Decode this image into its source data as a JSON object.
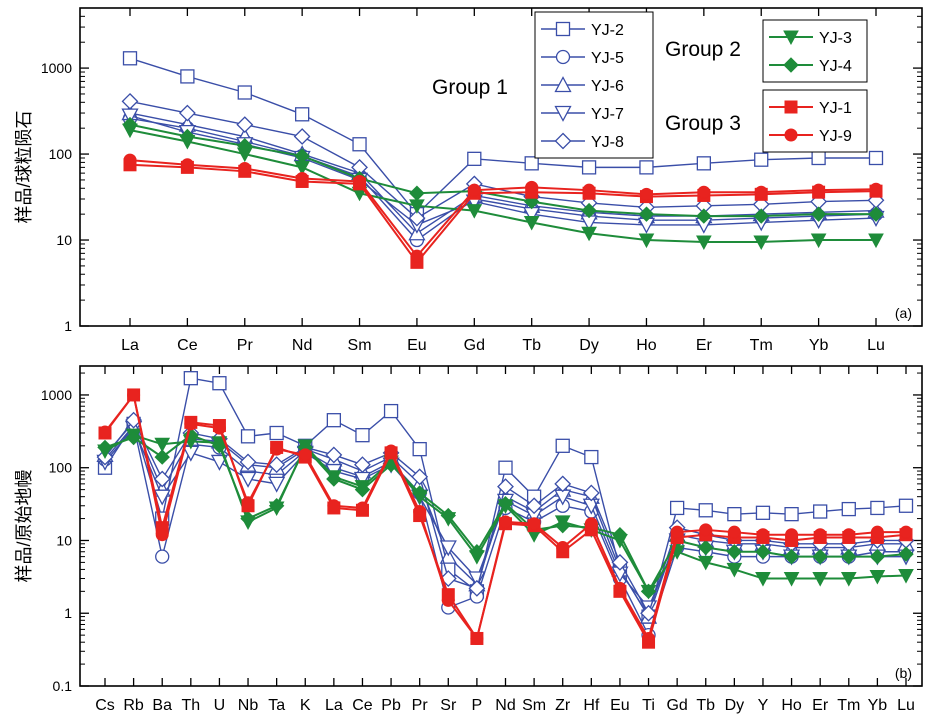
{
  "chart_data": [
    {
      "type": "line",
      "panel_label": "(a)",
      "ylabel": "样品/球粒陨石",
      "yscale": "log",
      "ylim": [
        1,
        5000
      ],
      "ytick_labels": [
        "1",
        "10",
        "100",
        "1000"
      ],
      "yticks": [
        1,
        10,
        100,
        1000
      ],
      "categories": [
        "La",
        "Ce",
        "Pr",
        "Nd",
        "Sm",
        "Eu",
        "Gd",
        "Tb",
        "Dy",
        "Ho",
        "Er",
        "Tm",
        "Yb",
        "Lu"
      ],
      "groups": [
        {
          "label": "Group 1",
          "series": [
            "YJ-2",
            "YJ-5",
            "YJ-6",
            "YJ-7",
            "YJ-8"
          ]
        },
        {
          "label": "Group 2",
          "series": [
            "YJ-3",
            "YJ-4"
          ]
        },
        {
          "label": "Group 3",
          "series": [
            "YJ-1",
            "YJ-9"
          ]
        }
      ],
      "series": [
        {
          "name": "YJ-2",
          "marker": "square",
          "filled": false,
          "color": "#3a4ea8",
          "values": [
            1300,
            800,
            520,
            290,
            130,
            20,
            88,
            78,
            70,
            70,
            78,
            86,
            90,
            90
          ]
        },
        {
          "name": "YJ-5",
          "marker": "circle",
          "filled": false,
          "color": "#3a4ea8",
          "values": [
            260,
            200,
            140,
            95,
            55,
            10,
            30,
            23,
            19,
            17,
            17,
            18,
            19,
            20
          ]
        },
        {
          "name": "YJ-6",
          "marker": "triangle-up",
          "filled": false,
          "color": "#3a4ea8",
          "values": [
            300,
            220,
            160,
            100,
            60,
            12,
            33,
            25,
            21,
            19,
            19,
            20,
            21,
            22
          ]
        },
        {
          "name": "YJ-7",
          "marker": "triangle-down",
          "filled": false,
          "color": "#3a4ea8",
          "values": [
            280,
            180,
            130,
            90,
            50,
            15,
            28,
            20,
            16,
            15,
            15,
            16,
            17,
            18
          ]
        },
        {
          "name": "YJ-8",
          "marker": "diamond",
          "filled": false,
          "color": "#3a4ea8",
          "values": [
            410,
            300,
            220,
            160,
            70,
            18,
            45,
            32,
            27,
            24,
            25,
            26,
            28,
            29
          ]
        },
        {
          "name": "YJ-3",
          "marker": "triangle-down",
          "filled": true,
          "color": "#1e8c3a",
          "values": [
            190,
            140,
            100,
            70,
            35,
            25,
            22,
            16,
            12,
            10,
            9.5,
            9.5,
            10,
            10
          ]
        },
        {
          "name": "YJ-4",
          "marker": "diamond",
          "filled": true,
          "color": "#1e8c3a",
          "values": [
            220,
            160,
            125,
            95,
            52,
            35,
            37,
            28,
            22,
            20,
            19,
            19,
            20,
            20
          ]
        },
        {
          "name": "YJ-1",
          "marker": "square",
          "filled": true,
          "color": "#e8231f",
          "values": [
            75,
            70,
            63,
            48,
            45,
            5.5,
            35,
            36,
            35,
            32,
            33,
            34,
            36,
            37
          ]
        },
        {
          "name": "YJ-9",
          "marker": "circle",
          "filled": true,
          "color": "#e8231f",
          "values": [
            85,
            75,
            68,
            52,
            48,
            6.5,
            38,
            41,
            38,
            34,
            36,
            36,
            38,
            39
          ]
        }
      ]
    },
    {
      "type": "line",
      "panel_label": "(b)",
      "ylabel": "样品/原始地幔",
      "yscale": "log",
      "ylim": [
        0.1,
        2500
      ],
      "ytick_labels": [
        "0.1",
        "1",
        "10",
        "100",
        "1000"
      ],
      "yticks": [
        0.1,
        1,
        10,
        100,
        1000
      ],
      "categories": [
        "Cs",
        "Rb",
        "Ba",
        "Th",
        "U",
        "Nb",
        "Ta",
        "K",
        "La",
        "Ce",
        "Pb",
        "Pr",
        "Sr",
        "P",
        "Nd",
        "Sm",
        "Zr",
        "Hf",
        "Eu",
        "Ti",
        "Gd",
        "Tb",
        "Dy",
        "Y",
        "Ho",
        "Er",
        "Tm",
        "Yb",
        "Lu"
      ],
      "category_labels": [
        "Cs",
        "Rb",
        "Ba",
        "Th",
        "U",
        "Nb",
        "Ta",
        "K",
        "La",
        "Ce",
        "Pb",
        "Pr",
        "Sr",
        "P",
        "Nd",
        "Sm",
        "Zr",
        "Hf",
        "Eu",
        "Ti",
        "Gd",
        "Tb",
        "Dy",
        "Y",
        "Ho",
        "Er",
        "Tm",
        "Yb",
        "Lu"
      ],
      "series": [
        {
          "name": "YJ-2",
          "marker": "square",
          "filled": false,
          "color": "#3a4ea8",
          "values": [
            100,
            400,
            20,
            1700,
            1450,
            270,
            300,
            200,
            450,
            280,
            600,
            180,
            4,
            2,
            100,
            40,
            200,
            140,
            4,
            0.9,
            28,
            26,
            23,
            24,
            23,
            25,
            27,
            28,
            30
          ]
        },
        {
          "name": "YJ-5",
          "marker": "circle",
          "filled": false,
          "color": "#3a4ea8",
          "values": [
            130,
            380,
            6,
            210,
            190,
            90,
            80,
            170,
            100,
            75,
            120,
            45,
            1.2,
            1.7,
            28,
            18,
            30,
            25,
            3,
            0.5,
            8,
            7,
            6,
            6,
            6,
            6,
            6,
            7,
            7
          ]
        },
        {
          "name": "YJ-6",
          "marker": "triangle-up",
          "filled": false,
          "color": "#3a4ea8",
          "values": [
            150,
            420,
            50,
            250,
            230,
            110,
            100,
            180,
            130,
            90,
            140,
            60,
            6,
            2.5,
            40,
            25,
            50,
            40,
            4,
            0.9,
            12,
            10,
            9,
            9,
            8,
            8,
            8,
            9,
            9
          ]
        },
        {
          "name": "YJ-7",
          "marker": "triangle-down",
          "filled": false,
          "color": "#3a4ea8",
          "values": [
            120,
            350,
            40,
            160,
            120,
            70,
            60,
            160,
            90,
            70,
            110,
            40,
            8,
            3,
            35,
            22,
            40,
            30,
            3.5,
            1.2,
            10,
            8,
            7,
            7,
            6,
            6,
            6,
            6,
            6
          ]
        },
        {
          "name": "YJ-8",
          "marker": "diamond",
          "filled": false,
          "color": "#3a4ea8",
          "values": [
            140,
            450,
            70,
            300,
            250,
            120,
            110,
            190,
            150,
            110,
            160,
            75,
            3,
            2.2,
            55,
            30,
            60,
            45,
            5,
            1,
            15,
            12,
            10,
            10,
            9,
            9,
            9,
            10,
            10
          ]
        },
        {
          "name": "YJ-3",
          "marker": "triangle-down",
          "filled": true,
          "color": "#1e8c3a",
          "values": [
            170,
            280,
            210,
            230,
            220,
            18,
            28,
            200,
            75,
            55,
            120,
            40,
            20,
            6,
            30,
            12,
            18,
            14,
            10,
            2,
            7,
            5,
            4,
            3,
            3,
            3,
            3,
            3.2,
            3.3
          ]
        },
        {
          "name": "YJ-4",
          "marker": "diamond",
          "filled": true,
          "color": "#1e8c3a",
          "values": [
            190,
            260,
            140,
            280,
            200,
            20,
            30,
            190,
            70,
            50,
            110,
            45,
            22,
            7,
            32,
            14,
            16,
            15,
            12,
            2,
            10,
            8,
            7,
            7,
            6,
            6,
            6,
            6,
            6.5
          ]
        },
        {
          "name": "YJ-1",
          "marker": "square",
          "filled": true,
          "color": "#e8231f",
          "values": [
            300,
            1000,
            15,
            420,
            380,
            30,
            190,
            140,
            28,
            26,
            160,
            22,
            1.8,
            0.45,
            17,
            16,
            7,
            14,
            2,
            0.4,
            11,
            12,
            11,
            11,
            10,
            11,
            11,
            11,
            12
          ]
        },
        {
          "name": "YJ-9",
          "marker": "circle",
          "filled": true,
          "color": "#e8231f",
          "values": [
            310,
            1000,
            12,
            400,
            350,
            33,
            180,
            150,
            30,
            28,
            170,
            25,
            1.5,
            0.45,
            18,
            17,
            8,
            17,
            2.2,
            0.45,
            13,
            14,
            13,
            12,
            12,
            12,
            12,
            13,
            13
          ]
        }
      ]
    }
  ]
}
